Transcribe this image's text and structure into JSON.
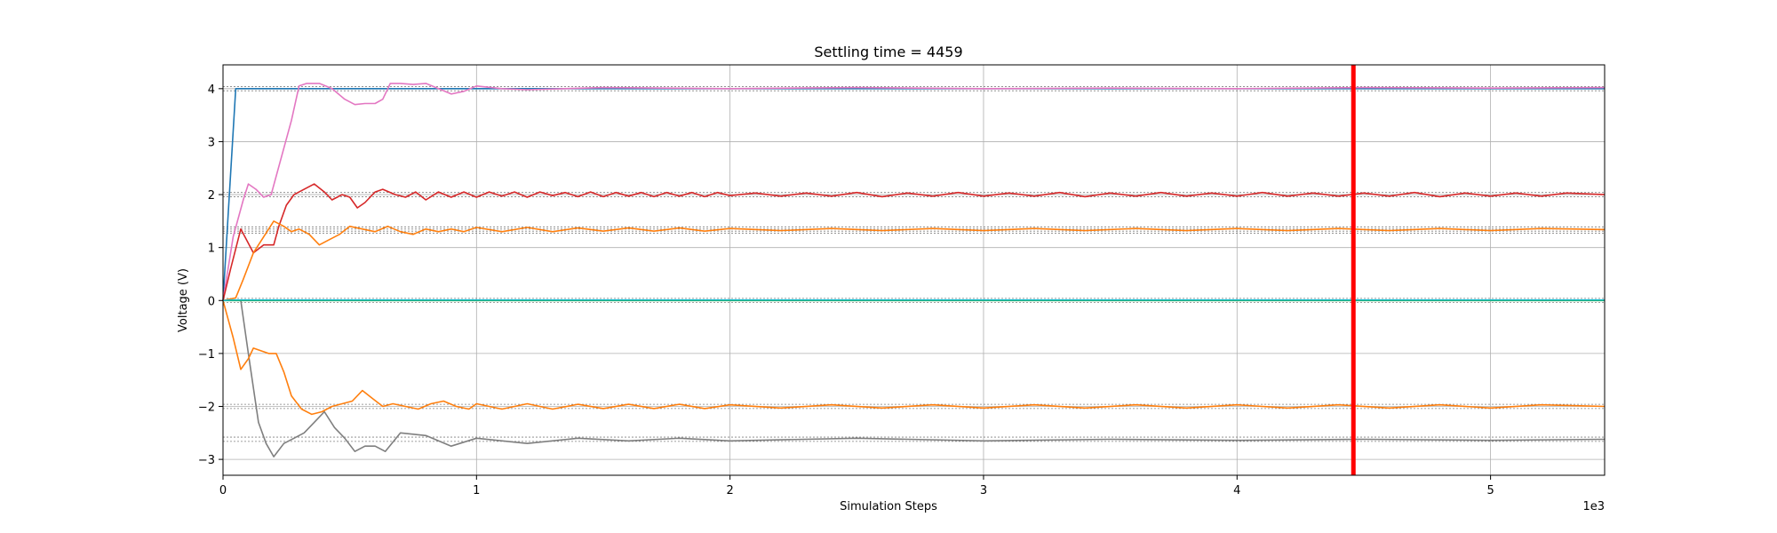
{
  "chart_data": {
    "type": "line",
    "title": "Settling time = 4459",
    "xlabel": "Simulation Steps",
    "ylabel": "Voltage (V)",
    "x_offset_label": "1e3",
    "xlim": [
      0,
      5.45
    ],
    "ylim": [
      -3.3,
      4.45
    ],
    "x_ticks": [
      0,
      1,
      2,
      3,
      4,
      5
    ],
    "y_ticks": [
      -3,
      -2,
      -1,
      0,
      1,
      2,
      3,
      4
    ],
    "grid": true,
    "settling_line": {
      "x": 4.459,
      "color": "#ff0000"
    },
    "reference_levels": [
      4.04,
      3.96,
      2.04,
      1.96,
      1.39,
      1.35,
      1.31,
      1.27,
      0.04,
      -0.04,
      -1.96,
      -2.04,
      -2.58,
      -2.66
    ],
    "series": [
      {
        "color": "#1f77b4",
        "x": [
          0,
          0.05,
          5.45
        ],
        "y": [
          0,
          4.0,
          4.0
        ]
      },
      {
        "color": "#e377c2",
        "x": [
          0,
          0.04,
          0.08,
          0.1,
          0.13,
          0.16,
          0.19,
          0.23,
          0.27,
          0.3,
          0.33,
          0.38,
          0.43,
          0.48,
          0.52,
          0.56,
          0.6,
          0.63,
          0.66,
          0.7,
          0.75,
          0.8,
          0.85,
          0.9,
          0.95,
          1.0,
          1.1,
          1.2,
          1.5,
          2.0,
          2.5,
          3.0,
          3.5,
          4.0,
          4.5,
          5.0,
          5.45
        ],
        "y": [
          0,
          1.2,
          1.9,
          2.2,
          2.1,
          1.95,
          2.0,
          2.7,
          3.4,
          4.05,
          4.1,
          4.1,
          4.0,
          3.8,
          3.7,
          3.72,
          3.72,
          3.8,
          4.1,
          4.1,
          4.08,
          4.1,
          4.0,
          3.9,
          3.95,
          4.05,
          4.0,
          3.98,
          4.02,
          4.0,
          4.02,
          4.0,
          4.01,
          4.0,
          4.02,
          4.01,
          4.02
        ]
      },
      {
        "color": "#d62728",
        "x": [
          0,
          0.03,
          0.07,
          0.12,
          0.16,
          0.2,
          0.22,
          0.25,
          0.28,
          0.32,
          0.36,
          0.4,
          0.43,
          0.47,
          0.5,
          0.53,
          0.56,
          0.6,
          0.63,
          0.68,
          0.72,
          0.76,
          0.8,
          0.85,
          0.9,
          0.95,
          1.0,
          1.05,
          1.1,
          1.15,
          1.2,
          1.25,
          1.3,
          1.35,
          1.4,
          1.45,
          1.5,
          1.55,
          1.6,
          1.65,
          1.7,
          1.75,
          1.8,
          1.85,
          1.9,
          1.95,
          2.0,
          2.1,
          2.2,
          2.3,
          2.4,
          2.5,
          2.6,
          2.7,
          2.8,
          2.9,
          3.0,
          3.1,
          3.2,
          3.3,
          3.4,
          3.5,
          3.6,
          3.7,
          3.8,
          3.9,
          4.0,
          4.1,
          4.2,
          4.3,
          4.4,
          4.5,
          4.6,
          4.7,
          4.8,
          4.9,
          5.0,
          5.1,
          5.2,
          5.3,
          5.45
        ],
        "y": [
          0,
          0.6,
          1.35,
          0.9,
          1.05,
          1.05,
          1.4,
          1.8,
          2.0,
          2.1,
          2.2,
          2.05,
          1.9,
          2.0,
          1.95,
          1.75,
          1.85,
          2.05,
          2.1,
          2.0,
          1.95,
          2.05,
          1.9,
          2.05,
          1.95,
          2.05,
          1.95,
          2.05,
          1.97,
          2.05,
          1.95,
          2.05,
          1.98,
          2.04,
          1.96,
          2.05,
          1.96,
          2.04,
          1.97,
          2.04,
          1.96,
          2.04,
          1.97,
          2.04,
          1.96,
          2.04,
          1.98,
          2.03,
          1.97,
          2.03,
          1.97,
          2.04,
          1.96,
          2.03,
          1.97,
          2.04,
          1.97,
          2.03,
          1.97,
          2.04,
          1.96,
          2.03,
          1.97,
          2.04,
          1.97,
          2.03,
          1.97,
          2.04,
          1.97,
          2.03,
          1.97,
          2.03,
          1.97,
          2.04,
          1.96,
          2.03,
          1.97,
          2.03,
          1.97,
          2.03,
          2.0
        ]
      },
      {
        "color": "#ff7f0e",
        "x": [
          0,
          0.05,
          0.08,
          0.12,
          0.16,
          0.2,
          0.24,
          0.27,
          0.3,
          0.34,
          0.38,
          0.42,
          0.46,
          0.5,
          0.55,
          0.6,
          0.65,
          0.7,
          0.75,
          0.8,
          0.85,
          0.9,
          0.95,
          1.0,
          1.1,
          1.2,
          1.3,
          1.4,
          1.5,
          1.6,
          1.7,
          1.8,
          1.9,
          2.0,
          2.2,
          2.4,
          2.6,
          2.8,
          3.0,
          3.2,
          3.4,
          3.6,
          3.8,
          4.0,
          4.2,
          4.4,
          4.6,
          4.8,
          5.0,
          5.2,
          5.45
        ],
        "y": [
          0,
          0.05,
          0.4,
          0.9,
          1.2,
          1.5,
          1.4,
          1.3,
          1.35,
          1.25,
          1.05,
          1.15,
          1.25,
          1.4,
          1.35,
          1.3,
          1.4,
          1.3,
          1.25,
          1.35,
          1.3,
          1.35,
          1.3,
          1.38,
          1.3,
          1.38,
          1.3,
          1.37,
          1.31,
          1.37,
          1.31,
          1.37,
          1.31,
          1.36,
          1.32,
          1.36,
          1.32,
          1.36,
          1.32,
          1.36,
          1.32,
          1.36,
          1.32,
          1.36,
          1.32,
          1.36,
          1.32,
          1.36,
          1.32,
          1.36,
          1.34
        ]
      },
      {
        "color": "#7f7f7f",
        "x": [
          0.07,
          0.1,
          0.14,
          0.17,
          0.2,
          0.24,
          0.28,
          0.32,
          0.36,
          0.4,
          0.44,
          0.48,
          0.52,
          0.56,
          0.6,
          0.64,
          0.7,
          0.8,
          0.9,
          1.0,
          1.2,
          1.4,
          1.6,
          1.8,
          2.0,
          2.5,
          3.0,
          3.5,
          4.0,
          4.5,
          5.0,
          5.45
        ],
        "y": [
          0,
          -1.0,
          -2.3,
          -2.7,
          -2.95,
          -2.7,
          -2.6,
          -2.5,
          -2.3,
          -2.1,
          -2.4,
          -2.6,
          -2.85,
          -2.75,
          -2.75,
          -2.85,
          -2.5,
          -2.55,
          -2.75,
          -2.6,
          -2.7,
          -2.6,
          -2.65,
          -2.6,
          -2.65,
          -2.6,
          -2.65,
          -2.62,
          -2.64,
          -2.62,
          -2.64,
          -2.62
        ]
      },
      {
        "color": "#ff7f0e",
        "x": [
          0,
          0.04,
          0.07,
          0.1,
          0.12,
          0.15,
          0.18,
          0.21,
          0.24,
          0.27,
          0.31,
          0.35,
          0.39,
          0.43,
          0.47,
          0.51,
          0.55,
          0.59,
          0.63,
          0.67,
          0.72,
          0.77,
          0.82,
          0.87,
          0.92,
          0.97,
          1.0,
          1.1,
          1.2,
          1.3,
          1.4,
          1.5,
          1.6,
          1.7,
          1.8,
          1.9,
          2.0,
          2.2,
          2.4,
          2.6,
          2.8,
          3.0,
          3.2,
          3.4,
          3.6,
          3.8,
          4.0,
          4.2,
          4.4,
          4.6,
          4.8,
          5.0,
          5.2,
          5.45
        ],
        "y": [
          0,
          -0.7,
          -1.3,
          -1.1,
          -0.9,
          -0.95,
          -1.0,
          -1.0,
          -1.35,
          -1.8,
          -2.05,
          -2.15,
          -2.1,
          -2.0,
          -1.95,
          -1.9,
          -1.7,
          -1.85,
          -2.0,
          -1.95,
          -2.0,
          -2.05,
          -1.95,
          -1.9,
          -2.0,
          -2.05,
          -1.95,
          -2.05,
          -1.95,
          -2.05,
          -1.96,
          -2.04,
          -1.96,
          -2.04,
          -1.96,
          -2.04,
          -1.97,
          -2.03,
          -1.97,
          -2.03,
          -1.97,
          -2.03,
          -1.97,
          -2.03,
          -1.97,
          -2.03,
          -1.97,
          -2.03,
          -1.97,
          -2.03,
          -1.97,
          -2.03,
          -1.97,
          -2.0
        ]
      },
      {
        "color": "#2ca02c",
        "x": [
          0,
          0.02,
          5.45
        ],
        "y": [
          0,
          0.0,
          0.0
        ]
      },
      {
        "color": "#17becf",
        "x": [
          0,
          0.03,
          5.45
        ],
        "y": [
          0,
          0.01,
          0.01
        ]
      }
    ]
  }
}
